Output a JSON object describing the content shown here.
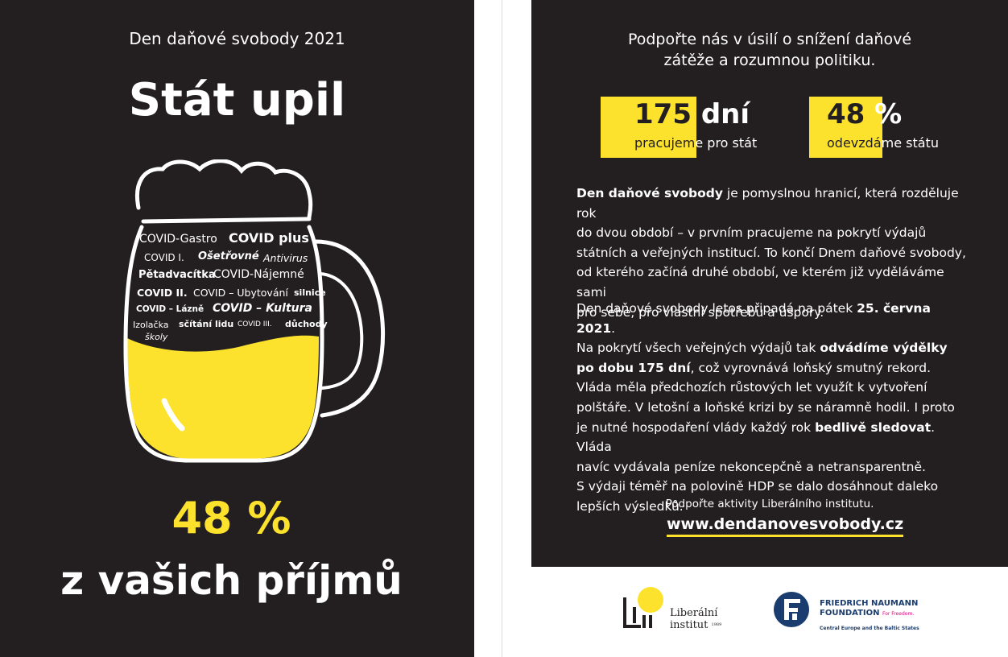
{
  "left": {
    "event_title": "Den daňové svobody 2021",
    "headline": "Stát upil",
    "percent": "48 %",
    "subline": "z vašich příjmů",
    "word_cloud": [
      "COVID-Gastro",
      "COVID plus",
      "COVID I.",
      "Ošetřovné",
      "Antivirus",
      "Pětadvacítka",
      "COVID-Nájemné",
      "COVID II.",
      "COVID – Ubytování",
      "silnice",
      "COVID – Lázně",
      "COVID – Kultura",
      "Izolačka",
      "sčítání lidu",
      "COVID III.",
      "důchody",
      "školy"
    ]
  },
  "right": {
    "support_line1": "Podpořte nás v úsilí o snížení daňové",
    "support_line2": "zátěže a rozumnou politiku.",
    "stat1": {
      "number": "175",
      "unit": "dní",
      "caption_a": "pracujem",
      "caption_b": "e pro stát"
    },
    "stat2": {
      "number": "48",
      "unit": "%",
      "caption_a": "odevzdá",
      "caption_b": "me státu"
    },
    "p1": {
      "bold_lead": "Den daňové svobody",
      "l1": " je pomyslnou hranicí, která rozděluje rok",
      "l2": "do dvou období – v prvním pracujeme na pokrytí výdajů",
      "l3": "státních a veřejných institucí. To končí Dnem daňové svobody,",
      "l4": "od kterého začíná druhé období, ve kterém již vyděláváme sami",
      "l5": "pro sebe, pro vlastní spotřebu a úspory."
    },
    "p2": {
      "l1a": "Den daňové svobody letos připadá na pátek ",
      "l1b": "25. června 2021",
      "l1c": ".",
      "l2a": "Na pokrytí všech veřejných výdajů tak ",
      "l2b": "odvádíme výdělky",
      "l3a": "po dobu 175 dní",
      "l3b": ", což vyrovnává loňský smutný rekord.",
      "l4": "Vláda měla předchozích růstových let využít k vytvoření",
      "l5": "polštáře. V letošní a loňské krizi by se náramně hodil. I proto",
      "l6a": "je nutné hospodaření vlády každý rok ",
      "l6b": "bedlivě sledovat",
      "l6c": ". Vláda",
      "l7": "navíc vydávala peníze nekoncepčně a netransparentně.",
      "l8": "S výdaji téměř na polovině HDP se dalo dosáhnout daleko",
      "l9": "lepších výsledků."
    },
    "footer_note": "Podpořte aktivity Liberálního institutu.",
    "url": "www.dendanovesvobody.cz"
  },
  "logos": {
    "li_line1": "Liberální",
    "li_line2": "institut",
    "li_year": "1989",
    "fnf_line1": "FRIEDRICH NAUMANN",
    "fnf_line2": "FOUNDATION",
    "fnf_tagline": "For Freedom.",
    "fnf_line3": "Central Europe and the Baltic States"
  },
  "colors": {
    "dark": "#231f20",
    "yellow": "#fce22c",
    "fnf_blue": "#1a3c6e",
    "fnf_magenta": "#e2007a"
  }
}
